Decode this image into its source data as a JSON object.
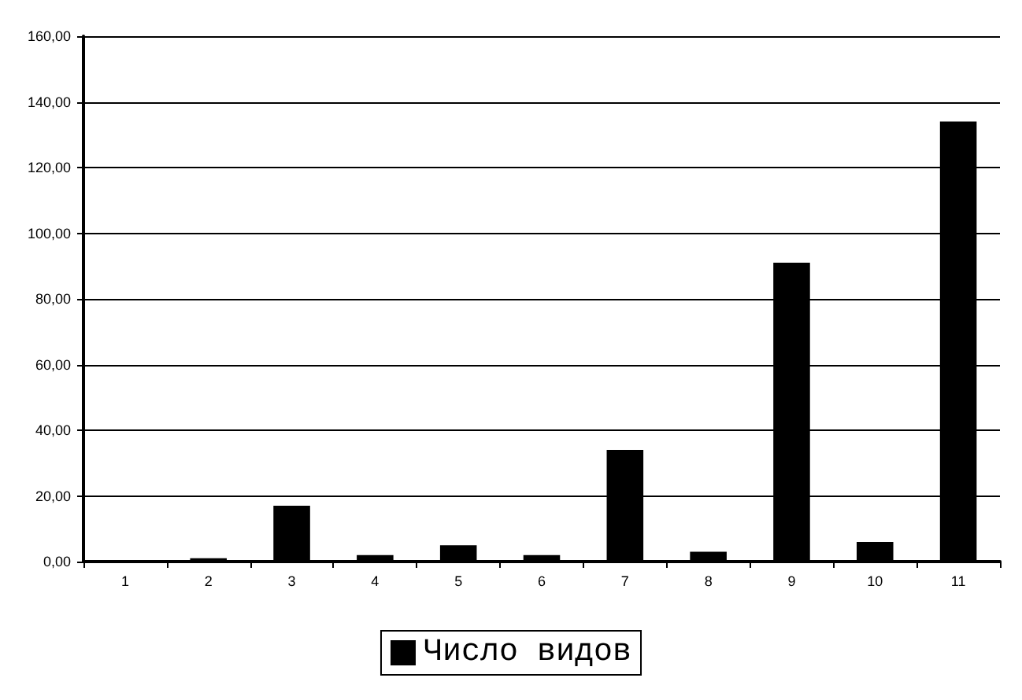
{
  "chart_data": {
    "type": "bar",
    "categories": [
      "1",
      "2",
      "3",
      "4",
      "5",
      "6",
      "7",
      "8",
      "9",
      "10",
      "11"
    ],
    "series": [
      {
        "name": "Число видов",
        "color": "#000000",
        "values": [
          0,
          1,
          17,
          2,
          5,
          2,
          34,
          3,
          91,
          6,
          134
        ]
      }
    ],
    "ylim": [
      0,
      160
    ],
    "yticks": [
      {
        "value": 0,
        "label": "0,00"
      },
      {
        "value": 20,
        "label": "20,00"
      },
      {
        "value": 40,
        "label": "40,00"
      },
      {
        "value": 60,
        "label": "60,00"
      },
      {
        "value": 80,
        "label": "80,00"
      },
      {
        "value": 100,
        "label": "100,00"
      },
      {
        "value": 120,
        "label": "120,00"
      },
      {
        "value": 140,
        "label": "140,00"
      },
      {
        "value": 160,
        "label": "160,00"
      }
    ],
    "grid": "y",
    "legend": "bottom"
  }
}
